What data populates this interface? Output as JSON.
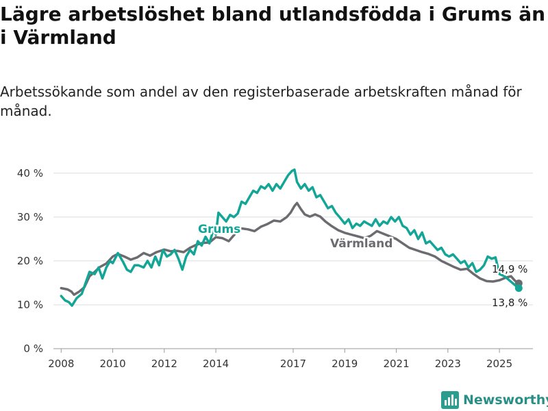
{
  "header": {
    "title": "Lägre arbetslöshet bland utlandsfödda i Grums än i Värmland",
    "subtitle": "Arbetssökande som andel av den registerbaserade arbetskraften månad för månad."
  },
  "brand": {
    "name": "Newsworthy",
    "icon": "bar-chart-logo-icon",
    "color": "#2a9d8f"
  },
  "chart_data": {
    "type": "line",
    "title": "Lägre arbetslöshet bland utlandsfödda i Grums än i Värmland",
    "subtitle": "Arbetssökande som andel av den registerbaserade arbetskraften månad för månad.",
    "xlabel": "",
    "ylabel": "",
    "x_range": [
      2007.7,
      2026.3
    ],
    "ylim": [
      0,
      42
    ],
    "y_ticks": [
      0,
      10,
      20,
      30,
      40
    ],
    "y_tick_labels": [
      "0 %",
      "10 %",
      "20 %",
      "30 %",
      "40 %"
    ],
    "x_ticks": [
      2008,
      2010,
      2012,
      2014,
      2017,
      2019,
      2021,
      2023,
      2025
    ],
    "x_tick_labels": [
      "2008",
      "2010",
      "2012",
      "2014",
      "2017",
      "2019",
      "2021",
      "2023",
      "2025"
    ],
    "grid": "horizontal",
    "legend": "direct labels on lines",
    "series": [
      {
        "name": "Värmland",
        "color": "#6b6b70",
        "end_label": "14,9 %",
        "points": [
          [
            2008.0,
            13.8
          ],
          [
            2008.25,
            13.5
          ],
          [
            2008.4,
            13.0
          ],
          [
            2008.5,
            12.3
          ],
          [
            2008.7,
            13.0
          ],
          [
            2008.9,
            14.0
          ],
          [
            2009.1,
            16.5
          ],
          [
            2009.3,
            17.5
          ],
          [
            2009.5,
            18.6
          ],
          [
            2009.75,
            19.4
          ],
          [
            2010.0,
            21.0
          ],
          [
            2010.2,
            21.6
          ],
          [
            2010.45,
            21.0
          ],
          [
            2010.7,
            20.3
          ],
          [
            2010.95,
            20.8
          ],
          [
            2011.2,
            21.8
          ],
          [
            2011.45,
            21.2
          ],
          [
            2011.7,
            22.0
          ],
          [
            2012.0,
            22.6
          ],
          [
            2012.25,
            22.2
          ],
          [
            2012.5,
            22.3
          ],
          [
            2012.75,
            22.0
          ],
          [
            2013.0,
            23.0
          ],
          [
            2013.25,
            23.7
          ],
          [
            2013.5,
            24.1
          ],
          [
            2013.75,
            24.2
          ],
          [
            2014.0,
            25.4
          ],
          [
            2014.25,
            25.2
          ],
          [
            2014.5,
            24.5
          ],
          [
            2014.75,
            26.2
          ],
          [
            2015.0,
            27.4
          ],
          [
            2015.25,
            27.2
          ],
          [
            2015.5,
            26.8
          ],
          [
            2015.75,
            27.8
          ],
          [
            2016.0,
            28.4
          ],
          [
            2016.25,
            29.2
          ],
          [
            2016.5,
            29.0
          ],
          [
            2016.75,
            30.0
          ],
          [
            2016.9,
            31.0
          ],
          [
            2017.05,
            32.5
          ],
          [
            2017.15,
            33.2
          ],
          [
            2017.3,
            31.8
          ],
          [
            2017.45,
            30.6
          ],
          [
            2017.65,
            30.1
          ],
          [
            2017.85,
            30.6
          ],
          [
            2018.05,
            30.1
          ],
          [
            2018.25,
            29.0
          ],
          [
            2018.5,
            27.9
          ],
          [
            2018.75,
            27.0
          ],
          [
            2019.0,
            26.4
          ],
          [
            2019.25,
            26.0
          ],
          [
            2019.5,
            25.6
          ],
          [
            2019.75,
            25.2
          ],
          [
            2020.0,
            25.7
          ],
          [
            2020.25,
            26.8
          ],
          [
            2020.5,
            26.2
          ],
          [
            2020.75,
            25.6
          ],
          [
            2021.0,
            25.0
          ],
          [
            2021.25,
            24.0
          ],
          [
            2021.5,
            23.0
          ],
          [
            2021.75,
            22.5
          ],
          [
            2022.0,
            22.0
          ],
          [
            2022.25,
            21.6
          ],
          [
            2022.5,
            21.0
          ],
          [
            2022.75,
            20.0
          ],
          [
            2023.0,
            19.3
          ],
          [
            2023.25,
            18.6
          ],
          [
            2023.5,
            18.0
          ],
          [
            2023.75,
            18.2
          ],
          [
            2024.0,
            17.0
          ],
          [
            2024.25,
            16.0
          ],
          [
            2024.5,
            15.4
          ],
          [
            2024.75,
            15.3
          ],
          [
            2025.0,
            15.6
          ],
          [
            2025.25,
            16.2
          ],
          [
            2025.45,
            16.5
          ],
          [
            2025.6,
            15.5
          ],
          [
            2025.75,
            14.9
          ]
        ]
      },
      {
        "name": "Grums",
        "color": "#13a596",
        "end_label": "13,8 %",
        "points": [
          [
            2008.0,
            12.0
          ],
          [
            2008.15,
            11.0
          ],
          [
            2008.3,
            10.6
          ],
          [
            2008.42,
            9.8
          ],
          [
            2008.6,
            11.5
          ],
          [
            2008.8,
            12.5
          ],
          [
            2008.95,
            15.0
          ],
          [
            2009.1,
            17.5
          ],
          [
            2009.3,
            17.0
          ],
          [
            2009.45,
            18.5
          ],
          [
            2009.6,
            16.0
          ],
          [
            2009.75,
            18.5
          ],
          [
            2009.9,
            20.0
          ],
          [
            2010.0,
            19.5
          ],
          [
            2010.2,
            21.8
          ],
          [
            2010.4,
            19.8
          ],
          [
            2010.55,
            18.0
          ],
          [
            2010.7,
            17.5
          ],
          [
            2010.85,
            19.0
          ],
          [
            2011.0,
            19.0
          ],
          [
            2011.2,
            18.5
          ],
          [
            2011.35,
            20.0
          ],
          [
            2011.5,
            18.5
          ],
          [
            2011.65,
            21.0
          ],
          [
            2011.8,
            19.0
          ],
          [
            2011.95,
            22.5
          ],
          [
            2012.1,
            21.0
          ],
          [
            2012.25,
            21.5
          ],
          [
            2012.4,
            22.5
          ],
          [
            2012.55,
            20.5
          ],
          [
            2012.7,
            18.0
          ],
          [
            2012.85,
            21.0
          ],
          [
            2013.0,
            22.5
          ],
          [
            2013.15,
            21.5
          ],
          [
            2013.3,
            24.5
          ],
          [
            2013.45,
            23.5
          ],
          [
            2013.6,
            25.5
          ],
          [
            2013.75,
            24.0
          ],
          [
            2013.9,
            27.0
          ],
          [
            2014.0,
            26.0
          ],
          [
            2014.1,
            31.0
          ],
          [
            2014.25,
            30.0
          ],
          [
            2014.4,
            29.0
          ],
          [
            2014.55,
            30.5
          ],
          [
            2014.7,
            30.0
          ],
          [
            2014.85,
            30.8
          ],
          [
            2015.0,
            33.5
          ],
          [
            2015.15,
            33.0
          ],
          [
            2015.3,
            34.5
          ],
          [
            2015.45,
            36.0
          ],
          [
            2015.6,
            35.5
          ],
          [
            2015.75,
            37.0
          ],
          [
            2015.9,
            36.5
          ],
          [
            2016.05,
            37.5
          ],
          [
            2016.2,
            36.0
          ],
          [
            2016.35,
            37.5
          ],
          [
            2016.5,
            36.5
          ],
          [
            2016.65,
            38.0
          ],
          [
            2016.8,
            39.5
          ],
          [
            2016.95,
            40.5
          ],
          [
            2017.05,
            40.8
          ],
          [
            2017.15,
            38.0
          ],
          [
            2017.3,
            36.5
          ],
          [
            2017.45,
            37.5
          ],
          [
            2017.6,
            36.0
          ],
          [
            2017.75,
            36.8
          ],
          [
            2017.9,
            34.5
          ],
          [
            2018.05,
            35.0
          ],
          [
            2018.2,
            33.5
          ],
          [
            2018.35,
            32.0
          ],
          [
            2018.5,
            32.5
          ],
          [
            2018.65,
            31.0
          ],
          [
            2018.8,
            30.0
          ],
          [
            2019.0,
            28.5
          ],
          [
            2019.15,
            29.5
          ],
          [
            2019.3,
            27.5
          ],
          [
            2019.45,
            28.5
          ],
          [
            2019.6,
            28.0
          ],
          [
            2019.75,
            29.0
          ],
          [
            2019.9,
            28.5
          ],
          [
            2020.05,
            28.0
          ],
          [
            2020.2,
            29.5
          ],
          [
            2020.35,
            28.0
          ],
          [
            2020.5,
            29.0
          ],
          [
            2020.65,
            28.5
          ],
          [
            2020.8,
            30.0
          ],
          [
            2020.95,
            29.0
          ],
          [
            2021.1,
            30.0
          ],
          [
            2021.25,
            28.0
          ],
          [
            2021.4,
            27.5
          ],
          [
            2021.55,
            26.0
          ],
          [
            2021.7,
            27.0
          ],
          [
            2021.85,
            25.0
          ],
          [
            2022.0,
            26.5
          ],
          [
            2022.15,
            24.0
          ],
          [
            2022.3,
            24.5
          ],
          [
            2022.45,
            23.5
          ],
          [
            2022.6,
            22.5
          ],
          [
            2022.75,
            23.0
          ],
          [
            2022.9,
            21.5
          ],
          [
            2023.05,
            21.0
          ],
          [
            2023.2,
            21.5
          ],
          [
            2023.35,
            20.5
          ],
          [
            2023.5,
            19.5
          ],
          [
            2023.65,
            20.0
          ],
          [
            2023.8,
            18.5
          ],
          [
            2023.95,
            19.5
          ],
          [
            2024.1,
            17.5
          ],
          [
            2024.25,
            18.0
          ],
          [
            2024.4,
            19.0
          ],
          [
            2024.55,
            21.0
          ],
          [
            2024.7,
            20.5
          ],
          [
            2024.85,
            20.8
          ],
          [
            2025.0,
            17.0
          ],
          [
            2025.2,
            16.5
          ],
          [
            2025.4,
            15.5
          ],
          [
            2025.6,
            14.5
          ],
          [
            2025.75,
            13.8
          ]
        ]
      }
    ]
  }
}
